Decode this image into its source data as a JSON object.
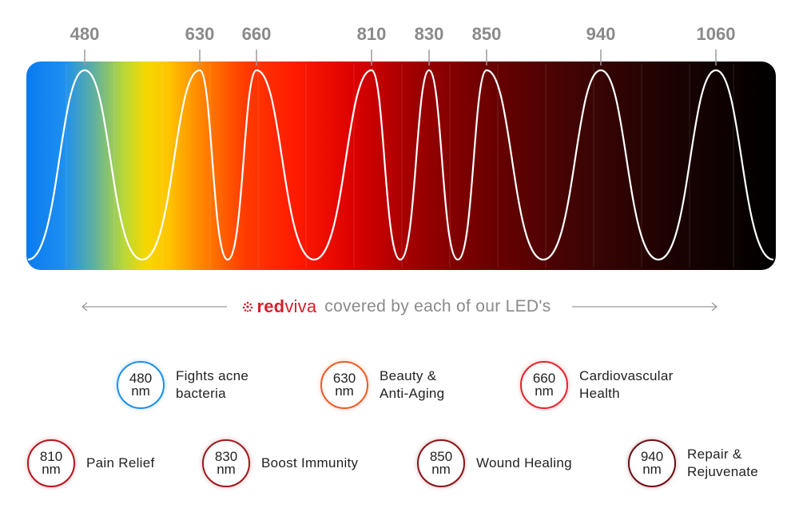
{
  "chart_data": {
    "type": "spectrum",
    "title": "",
    "wavelengths": [
      480,
      630,
      660,
      810,
      830,
      850,
      940,
      1060
    ],
    "gradient_colors": [
      "#0a7bf0",
      "#1d90f0",
      "#f6d800",
      "#ff9800",
      "#ff2a00",
      "#c40000",
      "#7a0000",
      "#3a0000",
      "#000000"
    ]
  },
  "brand": {
    "name_red": "red",
    "name_viva": "viva",
    "icon": "dotted-sun-icon"
  },
  "caption": "covered by each of our LED's",
  "benefits": [
    {
      "nm": "480",
      "unit": "nm",
      "label": "Fights acne\nbacteria",
      "color": "#1e90e8"
    },
    {
      "nm": "630",
      "unit": "nm",
      "label": "Beauty &\nAnti-Aging",
      "color": "#f05a22"
    },
    {
      "nm": "660",
      "unit": "nm",
      "label": "Cardiovascular\nHealth",
      "color": "#e8222a"
    },
    {
      "nm": "810",
      "unit": "nm",
      "label": "Pain Relief",
      "color": "#b8141e"
    },
    {
      "nm": "830",
      "unit": "nm",
      "label": "Boost Immunity",
      "color": "#9c1a1e"
    },
    {
      "nm": "850",
      "unit": "nm",
      "label": "Wound Healing",
      "color": "#8a1418"
    },
    {
      "nm": "940",
      "unit": "nm",
      "label": "Repair &\nRejuvenate",
      "color": "#6a1014"
    }
  ]
}
